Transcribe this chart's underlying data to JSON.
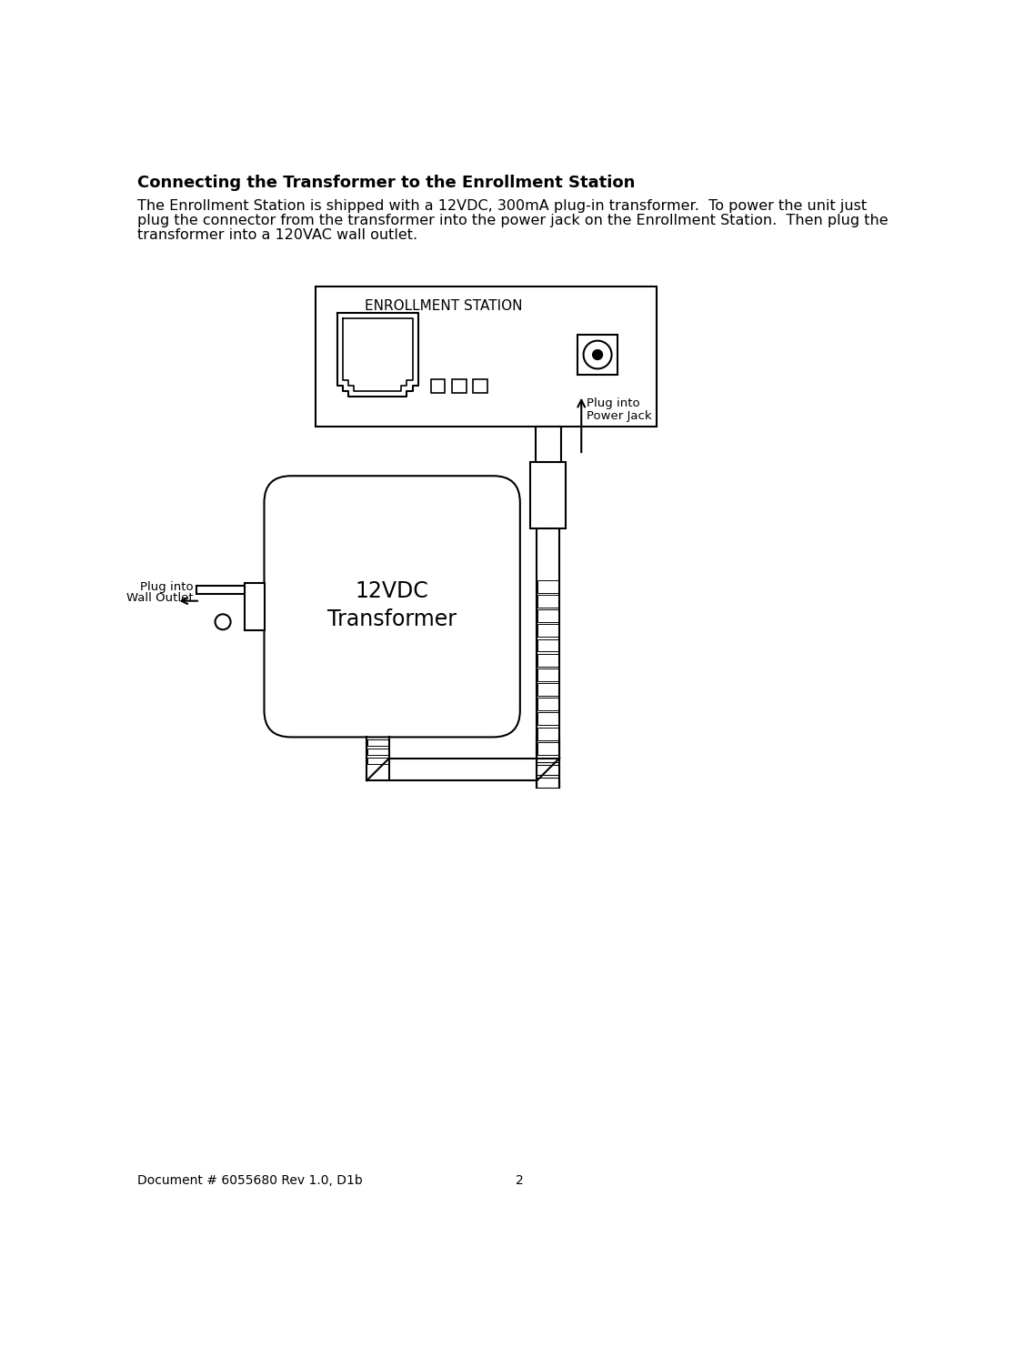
{
  "title": "Connecting the Transformer to the Enrollment Station",
  "body_line1": "The Enrollment Station is shipped with a 12VDC, 300mA plug-in transformer.  To power the unit just",
  "body_line2": "plug the connector from the transformer into the power jack on the Enrollment Station.  Then plug the",
  "body_line3": "transformer into a 120VAC wall outlet.",
  "footer_left": "Document # 6055680 Rev 1.0, D1b",
  "footer_center": "2",
  "bg_color": "#ffffff",
  "line_color": "#000000",
  "text_color": "#000000",
  "title_fontsize": 13,
  "body_fontsize": 11.5,
  "footer_fontsize": 10,
  "enrollment_label": "ENROLLMENT STATION",
  "transformer_label_line1": "12VDC",
  "transformer_label_line2": "Transformer",
  "plug_into_wall_line1": "Plug into",
  "plug_into_wall_line2": "Wall Outlet",
  "plug_into_jack_line1": "Plug into",
  "plug_into_jack_line2": "Power Jack"
}
